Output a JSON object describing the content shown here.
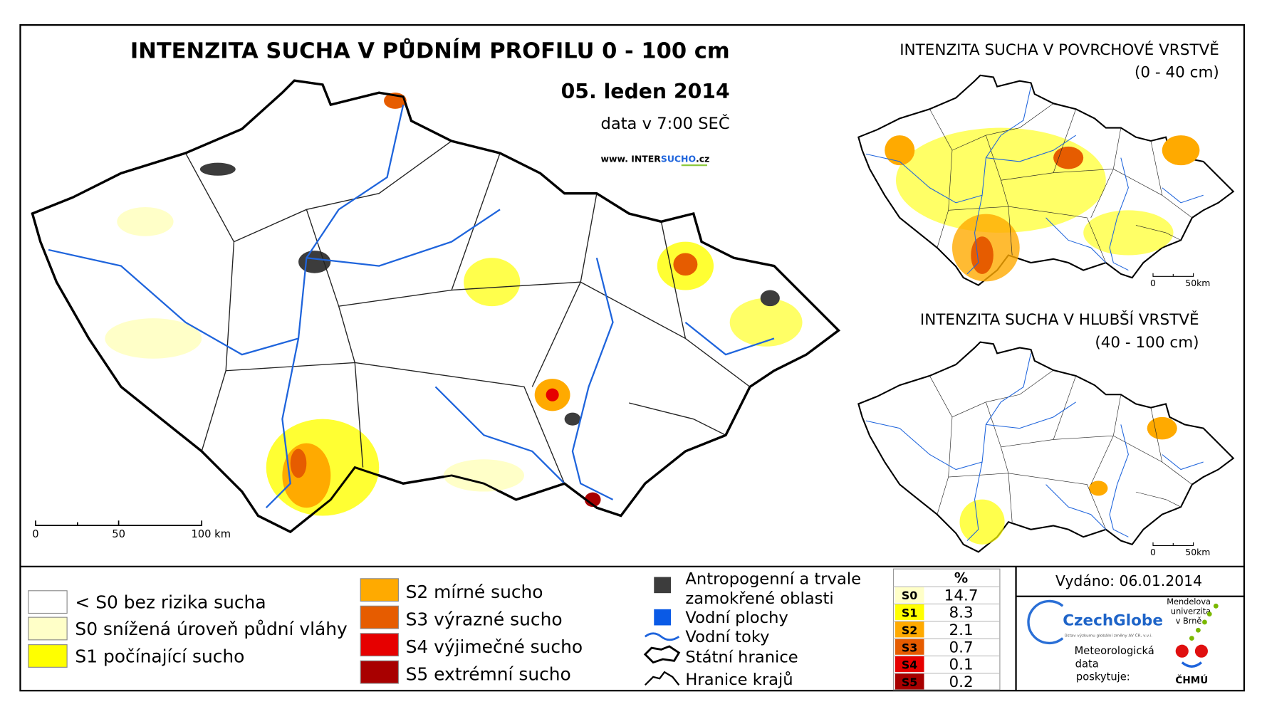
{
  "map": {
    "title": "INTENZITA SUCHA V PŮDNÍM PROFILU 0 - 100 cm",
    "date": "05. leden 2014",
    "data_time": "data v 7:00 SEČ",
    "website": {
      "prefix": "www. INTER",
      "highlight": "SUCHO",
      "suffix": ".cz"
    },
    "scale": [
      "0",
      "50",
      "100 km"
    ]
  },
  "insets": [
    {
      "title": "INTENZITA SUCHA V POVRCHOVÉ VRSTVĚ",
      "subtitle": "(0 - 40 cm)",
      "scale": [
        "0",
        "50km"
      ]
    },
    {
      "title": "INTENZITA SUCHA V HLUBŠÍ VRSTVĚ",
      "subtitle": "(40 - 100 cm)",
      "scale": [
        "0",
        "50km"
      ]
    }
  ],
  "legend": {
    "classes": [
      {
        "label": "< S0 bez rizika sucha",
        "color": "#ffffff"
      },
      {
        "label": "S0 snížená úroveň půdní vláhy",
        "color": "#ffffc8"
      },
      {
        "label": "S1 počínající sucho",
        "color": "#ffff00"
      },
      {
        "label": "S2 mírné sucho",
        "color": "#ffaa00"
      },
      {
        "label": "S3 výrazné sucho",
        "color": "#e65c00"
      },
      {
        "label": "S4 výjimečné sucho",
        "color": "#e60000"
      },
      {
        "label": "S5 extrémní sucho",
        "color": "#a80000"
      }
    ],
    "features": [
      {
        "lines": [
          "Antropogenní a trvale",
          "zamokřené oblasti"
        ],
        "color": "#3c3c3c"
      },
      {
        "lines": [
          "Vodní plochy"
        ],
        "color": "#0a5ae6"
      },
      {
        "lines": [
          "Vodní toky"
        ],
        "color": "#1e64dc"
      },
      {
        "lines": [
          "Státní hranice"
        ]
      },
      {
        "lines": [
          "Hranice krajů"
        ]
      }
    ]
  },
  "stats": {
    "header": "%",
    "rows": [
      {
        "label": "S0",
        "value": 14.7,
        "color": "#ffffc8"
      },
      {
        "label": "S1",
        "value": 8.3,
        "color": "#ffff00"
      },
      {
        "label": "S2",
        "value": 2.1,
        "color": "#ffaa00"
      },
      {
        "label": "S3",
        "value": 0.7,
        "color": "#e65c00"
      },
      {
        "label": "S4",
        "value": 0.1,
        "color": "#e60000"
      },
      {
        "label": "S5",
        "value": 0.2,
        "color": "#a80000"
      }
    ]
  },
  "issued": "Vydáno: 06.01.2014",
  "credits": {
    "czechglobe": "CzechGlobe",
    "czechglobe_sub": "Ústav výzkumu globální změny AV ČR, v.v.i.",
    "mendel": [
      "Mendelova",
      "univerzita",
      "v Brně"
    ],
    "provider": [
      "Meteorologická",
      "data",
      "poskytuje:"
    ],
    "chmu": "ČHMÚ"
  }
}
